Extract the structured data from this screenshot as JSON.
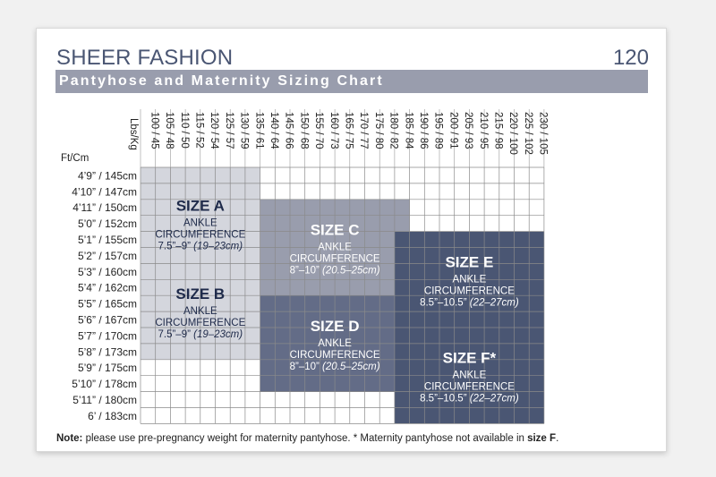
{
  "header": {
    "brand": "SHEER FASHION",
    "page_number": "120"
  },
  "title_bar": {
    "title": "Pantyhose and Maternity Sizing Chart"
  },
  "axis_labels": {
    "weight": "Lbs/Kg",
    "height": "Ft/Cm"
  },
  "weights": [
    "100 / 45",
    "105 / 48",
    "110 / 50",
    "115 / 52",
    "120 / 54",
    "125 / 57",
    "130 / 59",
    "135 / 61",
    "140 / 64",
    "145 / 66",
    "150 / 68",
    "155 / 70",
    "160 / 73",
    "165 / 75",
    "170 / 77",
    "175 / 80",
    "180 / 82",
    "185 / 84",
    "190 / 86",
    "195 / 89",
    "200 / 91",
    "205 / 93",
    "210 / 95",
    "215 / 98",
    "220 / 100",
    "225 / 102",
    "230 / 105"
  ],
  "heights": [
    "4’9” / 145cm",
    "4’10” / 147cm",
    "4’11” / 150cm",
    "5’0” / 152cm",
    "5’1” / 155cm",
    "5’2” / 157cm",
    "5’3” / 160cm",
    "5’4” / 162cm",
    "5’5” / 165cm",
    "5’6” / 167cm",
    "5’7” / 170cm",
    "5’8” / 173cm",
    "5’9” / 175cm",
    "5’10” / 178cm",
    "5’11” / 180cm",
    "6’ / 183cm"
  ],
  "sizes": [
    {
      "label": "SIZE A",
      "line1": "ANKLE",
      "line2": "CIRCUMFERENCE",
      "inches": "7.5”–9”",
      "metric": "(19–23cm)",
      "weight_range": [
        "100 / 45",
        "135 / 61"
      ],
      "height_range": [
        "4’9” / 145cm",
        "5’3” / 160cm"
      ],
      "color": "#d4d6dd",
      "text_color": "#1e2a4a"
    },
    {
      "label": "SIZE B",
      "line1": "ANKLE",
      "line2": "CIRCUMFERENCE",
      "inches": "7.5”–9”",
      "metric": "(19–23cm)",
      "weight_range": [
        "100 / 45",
        "135 / 61"
      ],
      "height_range": [
        "5’3” / 160cm",
        "5’8” / 173cm"
      ],
      "color": "#d4d6dd",
      "text_color": "#1e2a4a"
    },
    {
      "label": "SIZE C",
      "line1": "ANKLE",
      "line2": "CIRCUMFERENCE",
      "inches": "8”–10”",
      "metric": "(20.5–25cm)",
      "weight_range": [
        "140 / 64",
        "185 / 84"
      ],
      "height_range": [
        "4’11” / 150cm",
        "5’4” / 162cm"
      ],
      "color": "#999dad",
      "text_color": "#ffffff"
    },
    {
      "label": "SIZE D",
      "line1": "ANKLE",
      "line2": "CIRCUMFERENCE",
      "inches": "8”–10”",
      "metric": "(20.5–25cm)",
      "weight_range": [
        "140 / 64",
        "185 / 84"
      ],
      "height_range": [
        "5’5” / 165cm",
        "5’10” / 178cm"
      ],
      "color": "#636c87",
      "text_color": "#ffffff"
    },
    {
      "label": "SIZE E",
      "line1": "ANKLE",
      "line2": "CIRCUMFERENCE",
      "inches": "8.5”–10.5”",
      "metric": "(22–27cm)",
      "weight_range": [
        "185 / 84",
        "230 / 105"
      ],
      "height_range": [
        "5’1” / 155cm",
        "5’6” / 167cm"
      ],
      "color": "#4a5673",
      "text_color": "#ffffff"
    },
    {
      "label": "SIZE F*",
      "line1": "ANKLE",
      "line2": "CIRCUMFERENCE",
      "inches": "8.5”–10.5”",
      "metric": "(22–27cm)",
      "weight_range": [
        "185 / 84",
        "230 / 105"
      ],
      "height_range": [
        "5’7” / 170cm",
        "6’ / 183cm"
      ],
      "color": "#4a5673",
      "text_color": "#ffffff"
    }
  ],
  "colors": {
    "brand": "#4a5673",
    "title_bar": "#999dad",
    "grid": "#8a8a8a"
  },
  "note": {
    "prefix": "Note:",
    "text": " please use pre-pregnancy weight for maternity pantyhose. * Maternity pantyhose not available in ",
    "emph": "size F",
    "suffix": "."
  }
}
